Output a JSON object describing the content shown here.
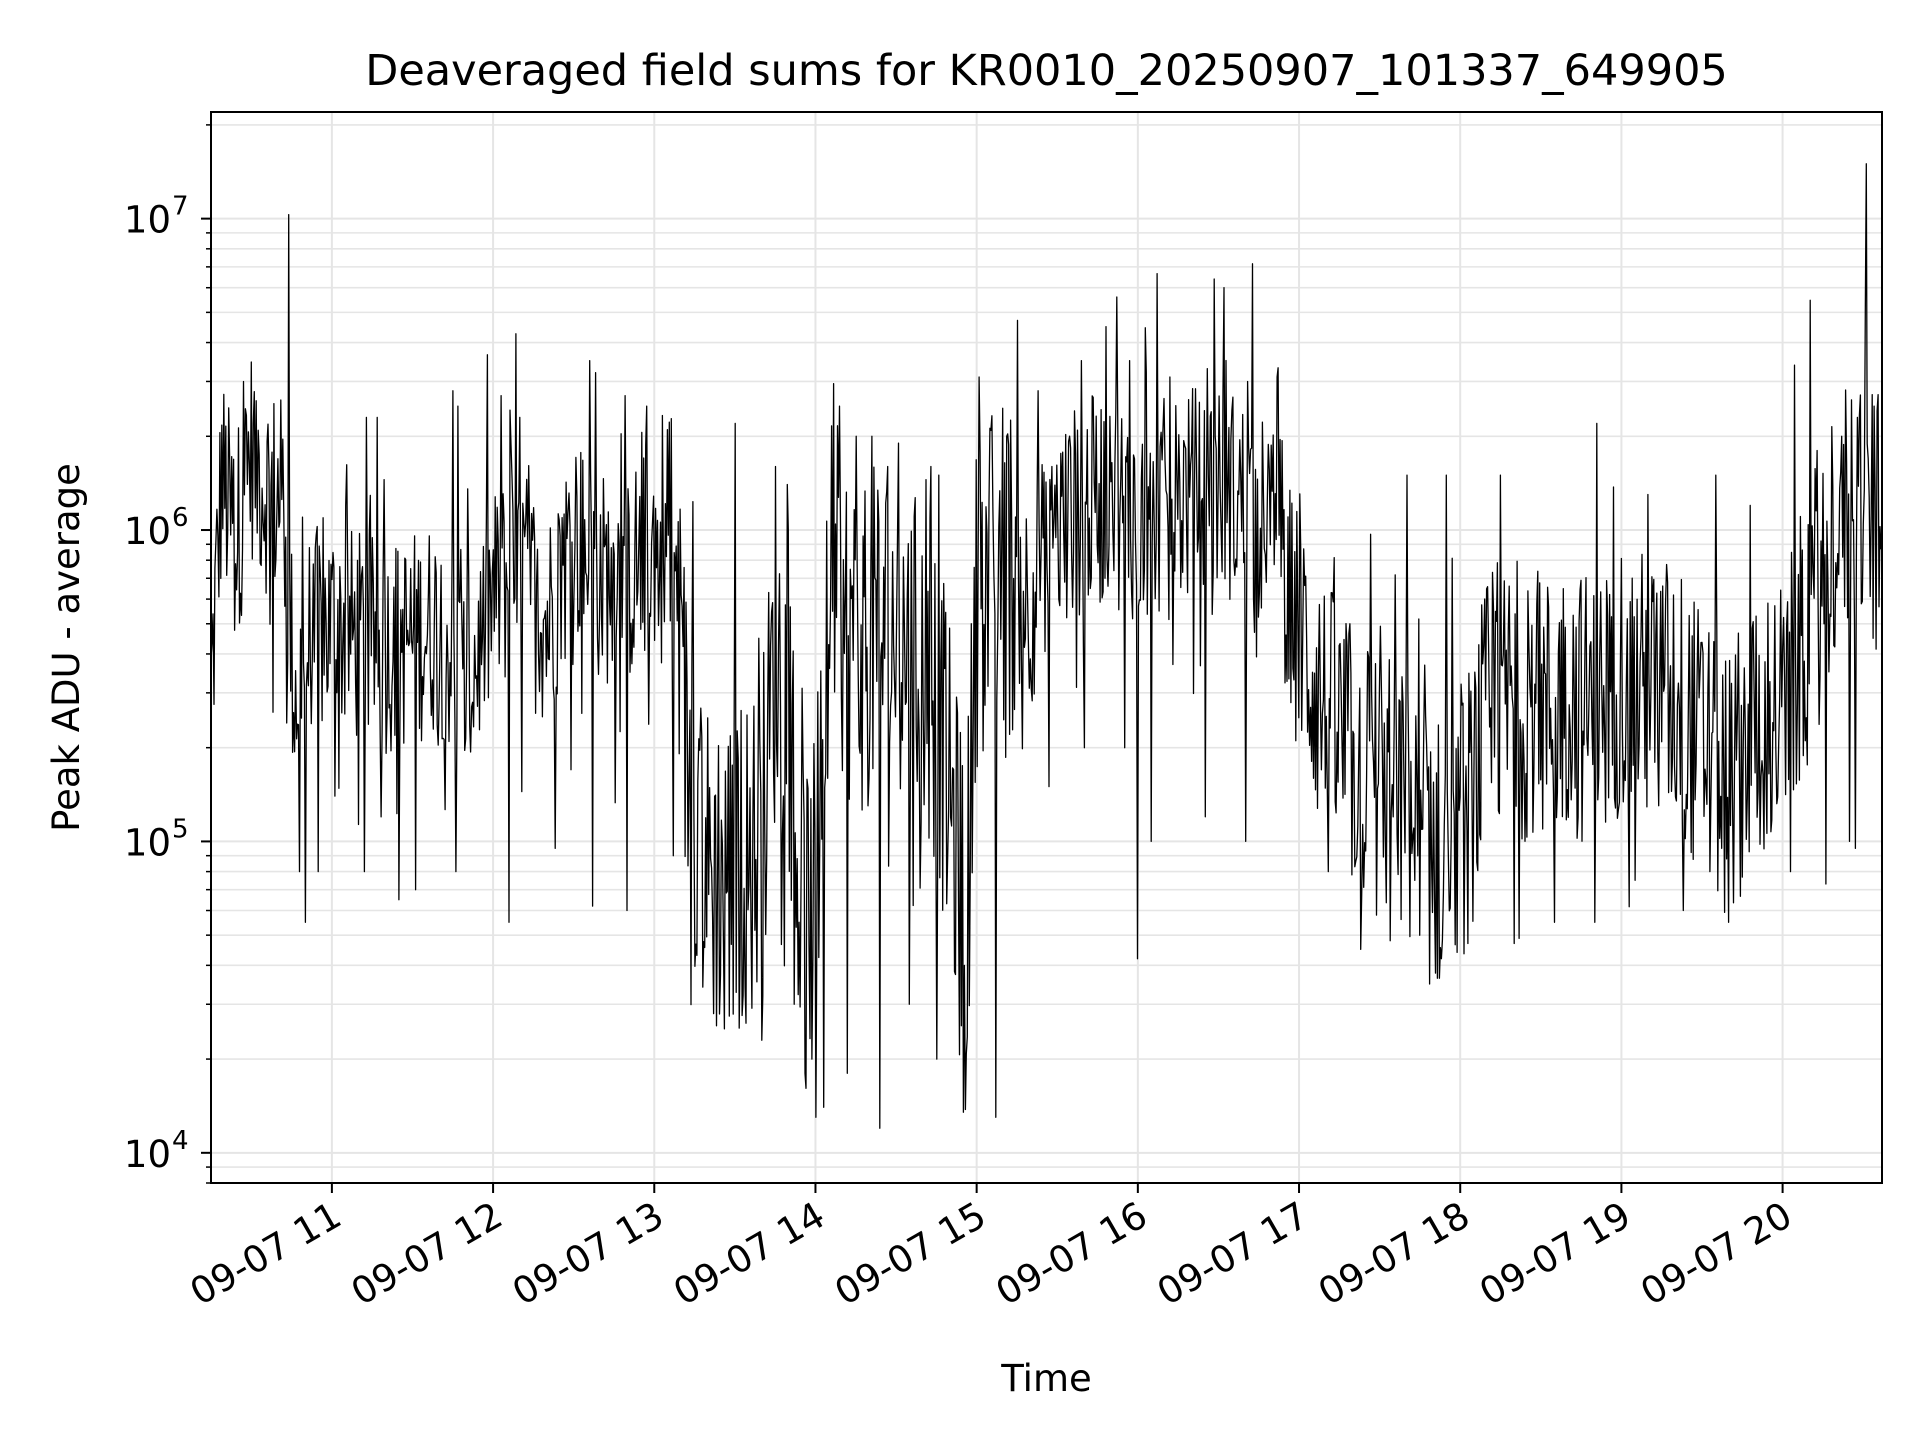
{
  "chart_data": {
    "type": "line",
    "title": "Deaveraged field sums for KR0010_20250907_101337_649905",
    "xlabel": "Time",
    "ylabel": "Peak ADU - average",
    "yscale": "log",
    "grid": true,
    "grid_minor_y": true,
    "line_color": "#000000",
    "grid_color": "#e5e5e5",
    "xlim": [
      "2025-09-07 10:15",
      "2025-09-07 20:37"
    ],
    "ylim": [
      8000,
      22000000
    ],
    "xticks": [
      {
        "value": "2025-09-07 11:00",
        "label": "09-07 11"
      },
      {
        "value": "2025-09-07 12:00",
        "label": "09-07 12"
      },
      {
        "value": "2025-09-07 13:00",
        "label": "09-07 13"
      },
      {
        "value": "2025-09-07 14:00",
        "label": "09-07 14"
      },
      {
        "value": "2025-09-07 15:00",
        "label": "09-07 15"
      },
      {
        "value": "2025-09-07 16:00",
        "label": "09-07 16"
      },
      {
        "value": "2025-09-07 17:00",
        "label": "09-07 17"
      },
      {
        "value": "2025-09-07 18:00",
        "label": "09-07 18"
      },
      {
        "value": "2025-09-07 19:00",
        "label": "09-07 19"
      },
      {
        "value": "2025-09-07 20:00",
        "label": "09-07 20"
      }
    ],
    "yticks": [
      {
        "value": 10000,
        "base": "10",
        "exp": "4"
      },
      {
        "value": 100000,
        "base": "10",
        "exp": "5"
      },
      {
        "value": 1000000,
        "base": "10",
        "exp": "6"
      },
      {
        "value": 10000000,
        "base": "10",
        "exp": "7"
      }
    ],
    "series_points": [
      [
        "2025-09-07 10:15",
        300000
      ],
      [
        "2025-09-07 10:19",
        1500000
      ],
      [
        "2025-09-07 10:24",
        900000
      ],
      [
        "2025-09-07 10:30",
        1800000
      ],
      [
        "2025-09-07 10:35",
        1400000
      ],
      [
        "2025-09-07 10:42",
        1200000
      ],
      [
        "2025-09-07 10:46",
        300000
      ],
      [
        "2025-09-07 10:52",
        450000
      ],
      [
        "2025-09-07 11:00",
        500000
      ],
      [
        "2025-09-07 11:10",
        450000
      ],
      [
        "2025-09-07 11:20",
        420000
      ],
      [
        "2025-09-07 11:30",
        450000
      ],
      [
        "2025-09-07 11:40",
        500000
      ],
      [
        "2025-09-07 11:50",
        300000
      ],
      [
        "2025-09-07 12:00",
        600000
      ],
      [
        "2025-09-07 12:10",
        800000
      ],
      [
        "2025-09-07 12:20",
        500000
      ],
      [
        "2025-09-07 12:30",
        1000000
      ],
      [
        "2025-09-07 12:40",
        700000
      ],
      [
        "2025-09-07 12:50",
        700000
      ],
      [
        "2025-09-07 13:00",
        900000
      ],
      [
        "2025-09-07 13:08",
        700000
      ],
      [
        "2025-09-07 13:12",
        200000
      ],
      [
        "2025-09-07 13:20",
        80000
      ],
      [
        "2025-09-07 13:30",
        80000
      ],
      [
        "2025-09-07 13:40",
        100000
      ],
      [
        "2025-09-07 13:45",
        400000
      ],
      [
        "2025-09-07 13:50",
        300000
      ],
      [
        "2025-09-07 13:55",
        50000
      ],
      [
        "2025-09-07 14:00",
        60000
      ],
      [
        "2025-09-07 14:06",
        700000
      ],
      [
        "2025-09-07 14:15",
        400000
      ],
      [
        "2025-09-07 14:25",
        500000
      ],
      [
        "2025-09-07 14:35",
        400000
      ],
      [
        "2025-09-07 14:45",
        300000
      ],
      [
        "2025-09-07 14:52",
        100000
      ],
      [
        "2025-09-07 14:56",
        40000
      ],
      [
        "2025-09-07 15:00",
        600000
      ],
      [
        "2025-09-07 15:10",
        800000
      ],
      [
        "2025-09-07 15:20",
        600000
      ],
      [
        "2025-09-07 15:30",
        1000000
      ],
      [
        "2025-09-07 15:40",
        1200000
      ],
      [
        "2025-09-07 15:50",
        1300000
      ],
      [
        "2025-09-07 16:00",
        1100000
      ],
      [
        "2025-09-07 16:10",
        1200000
      ],
      [
        "2025-09-07 16:20",
        1300000
      ],
      [
        "2025-09-07 16:30",
        1400000
      ],
      [
        "2025-09-07 16:40",
        1200000
      ],
      [
        "2025-09-07 16:50",
        1000000
      ],
      [
        "2025-09-07 17:00",
        500000
      ],
      [
        "2025-09-07 17:10",
        250000
      ],
      [
        "2025-09-07 17:20",
        180000
      ],
      [
        "2025-09-07 17:30",
        150000
      ],
      [
        "2025-09-07 17:40",
        130000
      ],
      [
        "2025-09-07 17:50",
        90000
      ],
      [
        "2025-09-07 18:00",
        100000
      ],
      [
        "2025-09-07 18:10",
        250000
      ],
      [
        "2025-09-07 18:20",
        300000
      ],
      [
        "2025-09-07 18:30",
        250000
      ],
      [
        "2025-09-07 18:40",
        300000
      ],
      [
        "2025-09-07 18:50",
        250000
      ],
      [
        "2025-09-07 19:00",
        350000
      ],
      [
        "2025-09-07 19:10",
        300000
      ],
      [
        "2025-09-07 19:20",
        300000
      ],
      [
        "2025-09-07 19:30",
        200000
      ],
      [
        "2025-09-07 19:40",
        150000
      ],
      [
        "2025-09-07 19:50",
        250000
      ],
      [
        "2025-09-07 20:00",
        250000
      ],
      [
        "2025-09-07 20:10",
        500000
      ],
      [
        "2025-09-07 20:20",
        1100000
      ],
      [
        "2025-09-07 20:30",
        1300000
      ],
      [
        "2025-09-07 20:37",
        900000
      ]
    ],
    "spikes": [
      [
        "2025-09-07 10:27",
        3000000
      ],
      [
        "2025-09-07 10:32",
        2600000
      ],
      [
        "2025-09-07 10:38",
        2700000
      ],
      [
        "2025-09-07 10:44",
        10300000
      ],
      [
        "2025-09-07 10:49",
        1100000
      ],
      [
        "2025-09-07 10:55",
        1000000
      ],
      [
        "2025-09-07 11:05",
        1200000
      ],
      [
        "2025-09-07 11:13",
        2300000
      ],
      [
        "2025-09-07 11:17",
        2300000
      ],
      [
        "2025-09-07 11:45",
        2800000
      ],
      [
        "2025-09-07 11:47",
        2500000
      ],
      [
        "2025-09-07 12:03",
        2700000
      ],
      [
        "2025-09-07 12:10",
        2300000
      ],
      [
        "2025-09-07 12:36",
        3500000
      ],
      [
        "2025-09-07 12:38",
        3200000
      ],
      [
        "2025-09-07 12:49",
        2700000
      ],
      [
        "2025-09-07 12:57",
        2500000
      ],
      [
        "2025-09-07 13:05",
        2100000
      ],
      [
        "2025-09-07 13:30",
        2200000
      ],
      [
        "2025-09-07 13:33",
        2000000
      ],
      [
        "2025-09-07 13:40",
        1800000
      ],
      [
        "2025-09-07 13:45",
        1600000
      ],
      [
        "2025-09-07 13:50",
        1000000
      ],
      [
        "2025-09-07 14:03",
        2400000
      ],
      [
        "2025-09-07 14:09",
        2500000
      ],
      [
        "2025-09-07 14:15",
        2000000
      ],
      [
        "2025-09-07 14:21",
        2000000
      ],
      [
        "2025-09-07 14:27",
        1600000
      ],
      [
        "2025-09-07 14:31",
        1900000
      ],
      [
        "2025-09-07 14:43",
        1600000
      ],
      [
        "2025-09-07 14:46",
        1500000
      ],
      [
        "2025-09-07 15:01",
        3100000
      ],
      [
        "2025-09-07 15:11",
        2000000
      ],
      [
        "2025-09-07 15:23",
        2800000
      ],
      [
        "2025-09-07 15:39",
        3500000
      ],
      [
        "2025-09-07 15:48",
        4500000
      ],
      [
        "2025-09-07 15:52",
        5600000
      ],
      [
        "2025-09-07 15:57",
        3500000
      ],
      [
        "2025-09-07 16:03",
        3200000
      ],
      [
        "2025-09-07 16:12",
        3100000
      ],
      [
        "2025-09-07 16:26",
        3300000
      ],
      [
        "2025-09-07 16:32",
        6000000
      ],
      [
        "2025-09-07 16:41",
        3000000
      ],
      [
        "2025-09-07 16:52",
        3100000
      ],
      [
        "2025-09-07 17:40",
        1500000
      ],
      [
        "2025-09-07 17:55",
        1500000
      ],
      [
        "2025-09-07 18:15",
        1500000
      ],
      [
        "2025-09-07 18:35",
        1400000
      ],
      [
        "2025-09-07 18:51",
        2200000
      ],
      [
        "2025-09-07 19:10",
        1300000
      ],
      [
        "2025-09-07 19:35",
        1500000
      ],
      [
        "2025-09-07 19:48",
        1200000
      ],
      [
        "2025-09-07 20:13",
        1800000
      ],
      [
        "2025-09-07 20:22",
        2000000
      ],
      [
        "2025-09-07 20:28",
        2300000
      ],
      [
        "2025-09-07 20:31",
        15000000
      ],
      [
        "2025-09-07 20:34",
        2500000
      ]
    ],
    "dips": [
      [
        "2025-09-07 10:38",
        260000
      ],
      [
        "2025-09-07 10:48",
        80000
      ],
      [
        "2025-09-07 10:50",
        55000
      ],
      [
        "2025-09-07 10:55",
        80000
      ],
      [
        "2025-09-07 11:12",
        80000
      ],
      [
        "2025-09-07 11:25",
        65000
      ],
      [
        "2025-09-07 11:31",
        70000
      ],
      [
        "2025-09-07 11:46",
        80000
      ],
      [
        "2025-09-07 12:06",
        55000
      ],
      [
        "2025-09-07 12:23",
        95000
      ],
      [
        "2025-09-07 12:37",
        62000
      ],
      [
        "2025-09-07 12:50",
        60000
      ],
      [
        "2025-09-07 13:07",
        90000
      ],
      [
        "2025-09-07 13:22",
        28000
      ],
      [
        "2025-09-07 13:26",
        25000
      ],
      [
        "2025-09-07 13:33",
        32000
      ],
      [
        "2025-09-07 13:40",
        23000
      ],
      [
        "2025-09-07 13:52",
        30000
      ],
      [
        "2025-09-07 13:56",
        18000
      ],
      [
        "2025-09-07 14:00",
        13000
      ],
      [
        "2025-09-07 14:03",
        14000
      ],
      [
        "2025-09-07 14:12",
        18000
      ],
      [
        "2025-09-07 14:24",
        12000
      ],
      [
        "2025-09-07 14:35",
        30000
      ],
      [
        "2025-09-07 14:45",
        20000
      ],
      [
        "2025-09-07 14:55",
        13500
      ],
      [
        "2025-09-07 15:07",
        13000
      ],
      [
        "2025-09-07 15:27",
        150000
      ],
      [
        "2025-09-07 15:40",
        200000
      ],
      [
        "2025-09-07 15:55",
        200000
      ],
      [
        "2025-09-07 16:00",
        42000
      ],
      [
        "2025-09-07 16:05",
        100000
      ],
      [
        "2025-09-07 16:25",
        120000
      ],
      [
        "2025-09-07 16:40",
        100000
      ],
      [
        "2025-09-07 17:11",
        80000
      ],
      [
        "2025-09-07 17:23",
        45000
      ],
      [
        "2025-09-07 17:34",
        48000
      ],
      [
        "2025-09-07 17:45",
        50000
      ],
      [
        "2025-09-07 17:53",
        42000
      ],
      [
        "2025-09-07 18:03",
        47000
      ],
      [
        "2025-09-07 18:20",
        47000
      ],
      [
        "2025-09-07 18:35",
        55000
      ],
      [
        "2025-09-07 18:50",
        55000
      ],
      [
        "2025-09-07 19:05",
        75000
      ],
      [
        "2025-09-07 19:23",
        60000
      ],
      [
        "2025-09-07 19:40",
        55000
      ],
      [
        "2025-09-07 20:03",
        80000
      ],
      [
        "2025-09-07 20:16",
        73000
      ],
      [
        "2025-09-07 20:25",
        100000
      ],
      [
        "2025-09-07 20:27",
        95000
      ]
    ]
  }
}
